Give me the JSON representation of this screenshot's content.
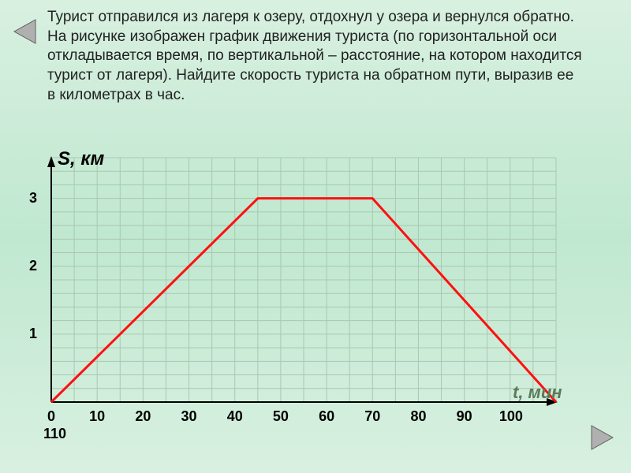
{
  "problem_text": "Турист отправился из лагеря к озеру, отдохнул у озера и вернулся обратно. На рисунке изображен график движения туриста (по горизонтальной оси откладывается время, по вертикальной – расстояние, на котором находится турист от лагеря). Найдите скорость туриста на обратном пути, выразив ее в километрах в час.",
  "chart": {
    "type": "line",
    "background_color": "transparent",
    "grid_color": "#a8c8b0",
    "grid_minor": true,
    "axis_color": "#000000",
    "line_color": "#ff1010",
    "line_width": 3,
    "x_axis": {
      "label": "t, мин",
      "min": 0,
      "max": 110,
      "tick_step": 10,
      "ticks": [
        0,
        10,
        20,
        30,
        40,
        50,
        60,
        70,
        80,
        90,
        100,
        110
      ]
    },
    "y_axis": {
      "label": "S, км",
      "min": 0,
      "max": 3.6,
      "tick_step": 1,
      "ticks": [
        1,
        2,
        3
      ]
    },
    "data_points": [
      {
        "t": 0,
        "s": 0
      },
      {
        "t": 45,
        "s": 3
      },
      {
        "t": 70,
        "s": 3
      },
      {
        "t": 110,
        "s": 0
      }
    ],
    "label_fontsize": 22,
    "tick_fontsize": 18,
    "axis_label_fontsize": 24,
    "nav_arrow_fill": "#b0b0b0",
    "nav_arrow_stroke": "#606060"
  }
}
